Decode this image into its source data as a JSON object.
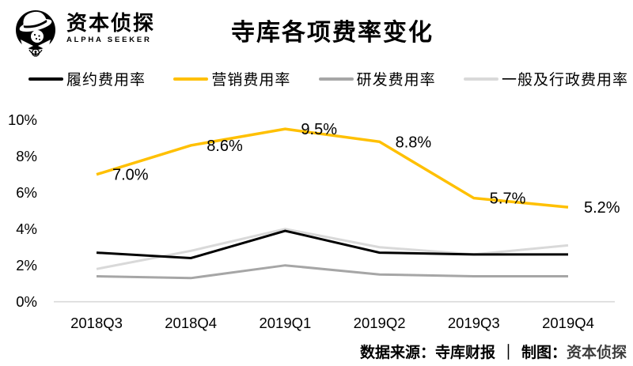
{
  "header": {
    "logo_cn": "资本侦探",
    "logo_en": "ALPHA SEEKER",
    "title": "寺库各项费率变化"
  },
  "legend": [
    {
      "label": "履约费用率",
      "color": "#000000"
    },
    {
      "label": "营销费用率",
      "color": "#FFC000"
    },
    {
      "label": "研发费用率",
      "color": "#A6A6A6"
    },
    {
      "label": "一般及行政费用率",
      "color": "#D9D9D9"
    }
  ],
  "chart_data": {
    "type": "line",
    "title": "寺库各项费率变化",
    "categories": [
      "2018Q3",
      "2018Q4",
      "2019Q1",
      "2019Q2",
      "2019Q3",
      "2019Q4"
    ],
    "series": [
      {
        "name": "一般及行政费用率",
        "color": "#D9D9D9",
        "values": [
          1.8,
          2.8,
          4.0,
          3.0,
          2.6,
          3.1
        ]
      },
      {
        "name": "研发费用率",
        "color": "#A6A6A6",
        "values": [
          1.4,
          1.3,
          2.0,
          1.5,
          1.4,
          1.4
        ]
      },
      {
        "name": "履约费用率",
        "color": "#000000",
        "values": [
          2.7,
          2.4,
          3.9,
          2.7,
          2.6,
          2.6
        ]
      },
      {
        "name": "营销费用率",
        "color": "#FFC000",
        "values": [
          7.0,
          8.6,
          9.5,
          8.8,
          5.7,
          5.2
        ],
        "point_labels": [
          "7.0%",
          "8.6%",
          "9.5%",
          "8.8%",
          "5.7%",
          "5.2%"
        ]
      }
    ],
    "y_ticks": [
      {
        "value": 0,
        "label": "0%"
      },
      {
        "value": 2,
        "label": "2%"
      },
      {
        "value": 4,
        "label": "4%"
      },
      {
        "value": 6,
        "label": "6%"
      },
      {
        "value": 8,
        "label": "8%"
      },
      {
        "value": 10,
        "label": "10%"
      }
    ],
    "ylim": [
      0,
      10
    ],
    "grid": "baseline-only",
    "baseline_color": "#D9D9D9",
    "legend_position": "top"
  },
  "footer": {
    "source": "数据来源：寺库财报",
    "divider": "｜",
    "credit": "制图：",
    "brand": "资本侦探"
  }
}
